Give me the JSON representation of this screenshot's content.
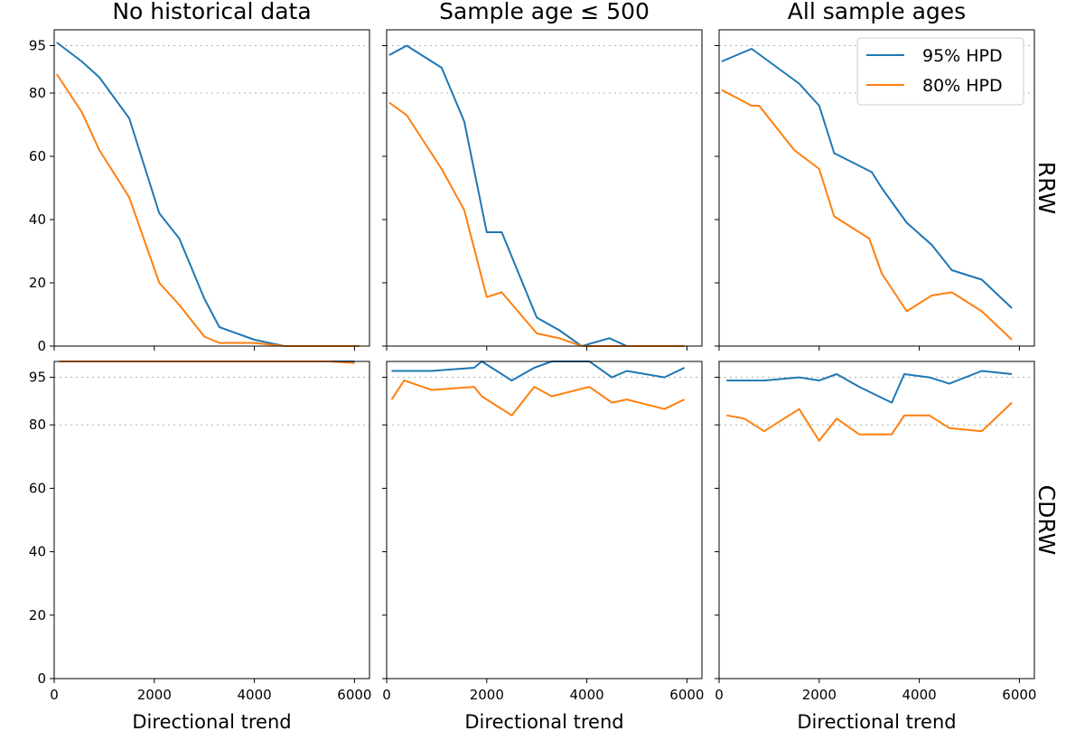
{
  "chart_data": [
    {
      "type": "line",
      "title": "No historical data",
      "row_label": "RRW",
      "xlabel": "",
      "ylabel": "",
      "xlim": [
        0,
        6300
      ],
      "ylim": [
        0,
        100
      ],
      "y_ref_lines": [
        80,
        95
      ],
      "series": [
        {
          "name": "95% HPD",
          "color": "#1f77b4",
          "x": [
            50,
            550,
            900,
            1500,
            2100,
            2500,
            3000,
            3300,
            4000,
            4600,
            5000,
            5500,
            6100
          ],
          "y": [
            96,
            90,
            85,
            72,
            42,
            34,
            15,
            6,
            2,
            0,
            0,
            0,
            0
          ]
        },
        {
          "name": "80% HPD",
          "color": "#ff7f0e",
          "x": [
            50,
            550,
            900,
            1500,
            2100,
            2500,
            3000,
            3300,
            4000,
            4600,
            5000,
            5500,
            6100
          ],
          "y": [
            86,
            74,
            62,
            47,
            20,
            13,
            3,
            1,
            1,
            0,
            0,
            0,
            0
          ]
        }
      ]
    },
    {
      "type": "line",
      "title": "Sample age ≤ 500",
      "row_label": "RRW",
      "xlabel": "",
      "ylabel": "",
      "xlim": [
        0,
        6300
      ],
      "ylim": [
        0,
        100
      ],
      "y_ref_lines": [
        80,
        95
      ],
      "series": [
        {
          "name": "95% HPD",
          "color": "#1f77b4",
          "x": [
            50,
            400,
            1100,
            1550,
            2000,
            2300,
            3000,
            3450,
            3900,
            4450,
            4800,
            5500,
            5950
          ],
          "y": [
            92,
            95,
            88,
            71,
            36,
            36,
            9,
            5,
            0,
            2.5,
            0,
            0,
            0
          ]
        },
        {
          "name": "80% HPD",
          "color": "#ff7f0e",
          "x": [
            50,
            400,
            1100,
            1550,
            2000,
            2300,
            3000,
            3450,
            3900,
            4450,
            4800,
            5500,
            5950
          ],
          "y": [
            77,
            73,
            56,
            43,
            15.5,
            17,
            4,
            2.5,
            0,
            0,
            0,
            0,
            0
          ]
        }
      ]
    },
    {
      "type": "line",
      "title": "All sample ages",
      "row_label": "RRW",
      "xlabel": "",
      "ylabel": "",
      "xlim": [
        0,
        6300
      ],
      "ylim": [
        0,
        100
      ],
      "y_ref_lines": [
        80,
        95
      ],
      "legend": {
        "position": "upper right",
        "entries": [
          "95% HPD",
          "80% HPD"
        ]
      },
      "series": [
        {
          "name": "95% HPD",
          "color": "#1f77b4",
          "x": [
            50,
            650,
            1600,
            2000,
            2300,
            3050,
            3250,
            3750,
            4250,
            4650,
            5250,
            5850
          ],
          "y": [
            90,
            94,
            83,
            76,
            61,
            55,
            50,
            39,
            32,
            24,
            21,
            12
          ]
        },
        {
          "name": "80% HPD",
          "color": "#ff7f0e",
          "x": [
            50,
            650,
            800,
            1500,
            2000,
            2300,
            3000,
            3250,
            3750,
            4250,
            4650,
            5250,
            5850
          ],
          "y": [
            81,
            76,
            76,
            62,
            56,
            41,
            34,
            23,
            11,
            16,
            17,
            11,
            2
          ]
        }
      ]
    },
    {
      "type": "line",
      "title": "",
      "row_label": "CDRW",
      "xlabel": "Directional trend",
      "ylabel": "",
      "xlim": [
        0,
        6300
      ],
      "ylim": [
        0,
        100
      ],
      "y_ref_lines": [
        80,
        95
      ],
      "series": [
        {
          "name": "95% HPD",
          "color": "#1f77b4",
          "x": [
            100,
            1000,
            2000,
            3000,
            4000,
            5000,
            5500,
            6000
          ],
          "y": [
            100,
            100,
            100,
            100,
            100,
            100,
            100,
            100
          ]
        },
        {
          "name": "80% HPD",
          "color": "#ff7f0e",
          "x": [
            100,
            1000,
            2000,
            3000,
            4000,
            5000,
            5500,
            6000
          ],
          "y": [
            100,
            100,
            100,
            100,
            100,
            100,
            100,
            99.5
          ]
        }
      ]
    },
    {
      "type": "line",
      "title": "",
      "row_label": "CDRW",
      "xlabel": "Directional trend",
      "ylabel": "",
      "xlim": [
        0,
        6300
      ],
      "ylim": [
        0,
        100
      ],
      "y_ref_lines": [
        80,
        95
      ],
      "series": [
        {
          "name": "95% HPD",
          "color": "#1f77b4",
          "x": [
            100,
            900,
            1750,
            1900,
            2500,
            2950,
            3300,
            4050,
            4500,
            4800,
            5550,
            5950
          ],
          "y": [
            97,
            97,
            98,
            100,
            94,
            98,
            100,
            100,
            95,
            97,
            95,
            98
          ]
        },
        {
          "name": "80% HPD",
          "color": "#ff7f0e",
          "x": [
            100,
            350,
            900,
            1750,
            1900,
            2500,
            2950,
            3300,
            4050,
            4500,
            4800,
            5550,
            5950
          ],
          "y": [
            88,
            94,
            91,
            92,
            89,
            83,
            92,
            89,
            92,
            87,
            88,
            85,
            88
          ]
        }
      ]
    },
    {
      "type": "line",
      "title": "",
      "row_label": "CDRW",
      "xlabel": "Directional trend",
      "ylabel": "",
      "xlim": [
        0,
        6300
      ],
      "ylim": [
        0,
        100
      ],
      "y_ref_lines": [
        80,
        95
      ],
      "series": [
        {
          "name": "95% HPD",
          "color": "#1f77b4",
          "x": [
            150,
            900,
            1600,
            2000,
            2350,
            2800,
            3450,
            3700,
            4200,
            4600,
            5250,
            5850
          ],
          "y": [
            94,
            94,
            95,
            94,
            96,
            92,
            87,
            96,
            95,
            93,
            97,
            96
          ]
        },
        {
          "name": "80% HPD",
          "color": "#ff7f0e",
          "x": [
            150,
            500,
            900,
            1600,
            2000,
            2350,
            2800,
            3450,
            3700,
            4200,
            4600,
            5250,
            5850
          ],
          "y": [
            83,
            82,
            78,
            85,
            75,
            82,
            77,
            77,
            83,
            83,
            79,
            78,
            87
          ]
        }
      ]
    }
  ],
  "y_ticks": [
    0,
    20,
    40,
    60,
    80,
    95
  ],
  "x_ticks": [
    0,
    2000,
    4000,
    6000
  ]
}
